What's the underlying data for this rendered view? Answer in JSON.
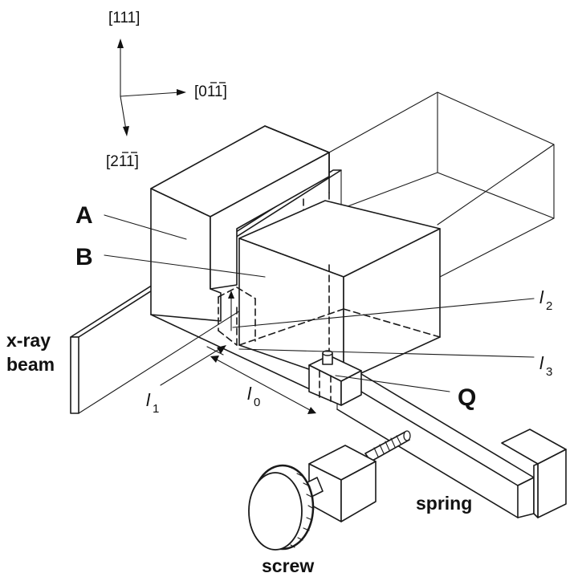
{
  "directions": {
    "up": "111",
    "right_lead": "0",
    "right_bar1": "1",
    "right_bar2": "1",
    "down_lead": "2",
    "down_bar1": "1",
    "down_bar2": "1",
    "open": "[",
    "close": "]"
  },
  "labels": {
    "A": "A",
    "B": "B",
    "Q": "Q",
    "xray_line1": "x-ray",
    "xray_line2": "beam",
    "spring": "spring",
    "screw": "screw",
    "l": "l",
    "l0_sub": "0",
    "l1_sub": "1",
    "l2_sub": "2",
    "l3_sub": "3"
  }
}
